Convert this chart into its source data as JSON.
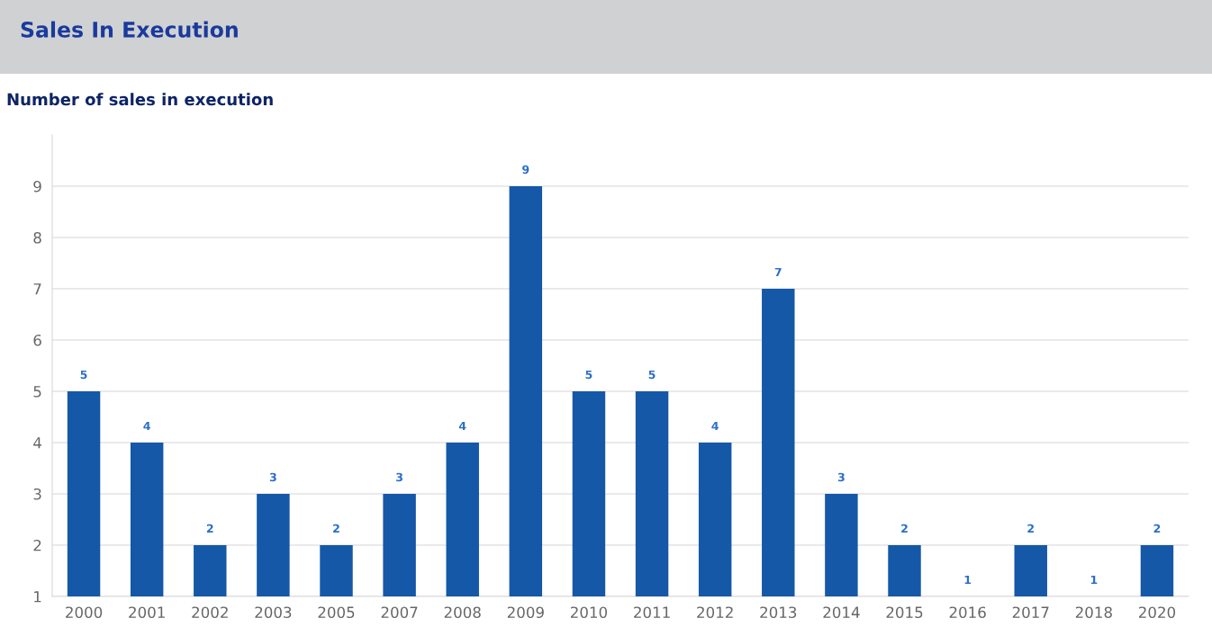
{
  "chart_data": {
    "type": "bar",
    "title": "Sales In Execution",
    "subtitle": "Number of sales in execution",
    "categories": [
      "2000",
      "2001",
      "2002",
      "2003",
      "2005",
      "2007",
      "2008",
      "2009",
      "2010",
      "2011",
      "2012",
      "2013",
      "2014",
      "2015",
      "2016",
      "2017",
      "2018",
      "2020"
    ],
    "values": [
      5,
      4,
      2,
      3,
      2,
      3,
      4,
      9,
      5,
      5,
      4,
      7,
      3,
      2,
      1,
      2,
      1,
      2
    ],
    "color": "#1558a8",
    "ylim": [
      1,
      10
    ],
    "yticks": [
      1,
      2,
      3,
      4,
      5,
      6,
      7,
      8,
      9
    ],
    "grid": "y",
    "data_labels": true
  }
}
